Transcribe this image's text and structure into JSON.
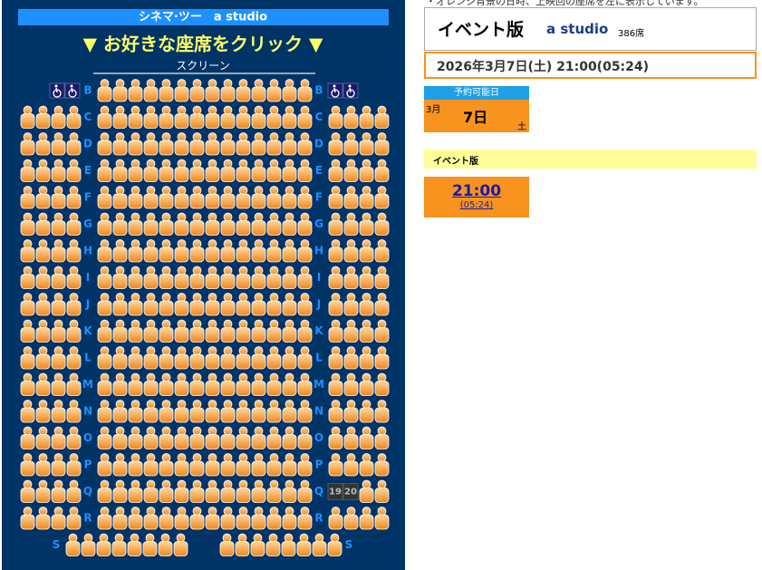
{
  "header": {
    "theater": "シネマ·ツー　a studio",
    "instruction": "▼ お好きな座席をクリック ▼",
    "screen": "スクリーン"
  },
  "rows": [
    "B",
    "C",
    "D",
    "E",
    "F",
    "G",
    "H",
    "I",
    "J",
    "K",
    "L",
    "M",
    "N",
    "O",
    "P",
    "Q",
    "R",
    "S"
  ],
  "occupied": [
    "19",
    "20"
  ],
  "info": {
    "note": "・オレンジ背景の日時、上映回の座席を左に表示しています。",
    "event": "イベント版",
    "studio": "a studio",
    "capacity": "386席",
    "datetime": "2026年3月7日(土) 21:00(05:24)"
  },
  "calendar": {
    "header": "予約可能日",
    "month": "3月",
    "day": "7日",
    "weekday": "土"
  },
  "schedule": {
    "title": "イベント版",
    "time": "21:00",
    "end": "(05:24)"
  }
}
